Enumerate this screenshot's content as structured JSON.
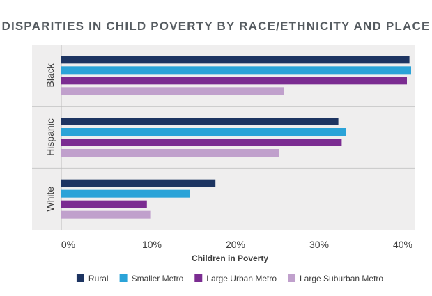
{
  "chart_data": {
    "type": "bar",
    "orientation": "horizontal",
    "title": "DISPARITIES IN CHILD POVERTY BY RACE/ETHNICITY AND PLACE",
    "xlabel": "Children in Poverty",
    "ylabel": "",
    "categories": [
      "Black",
      "Hispanic",
      "White"
    ],
    "series": [
      {
        "name": "Rural",
        "color": "#1d3461",
        "values": [
          40.8,
          32.3,
          17.6
        ]
      },
      {
        "name": "Smaller Metro",
        "color": "#2ba3d8",
        "values": [
          41.0,
          33.2,
          14.5
        ]
      },
      {
        "name": "Large Urban Metro",
        "color": "#7b2c91",
        "values": [
          40.5,
          32.7,
          9.4
        ]
      },
      {
        "name": "Large Suburban Metro",
        "color": "#c0a0cc",
        "values": [
          25.8,
          25.2,
          9.8
        ]
      }
    ],
    "xlim": [
      0,
      40
    ],
    "xticks": [
      "0%",
      "10%",
      "20%",
      "30%",
      "40%"
    ],
    "grid": false,
    "legend": "bottom",
    "band_color": "#efeeee"
  }
}
